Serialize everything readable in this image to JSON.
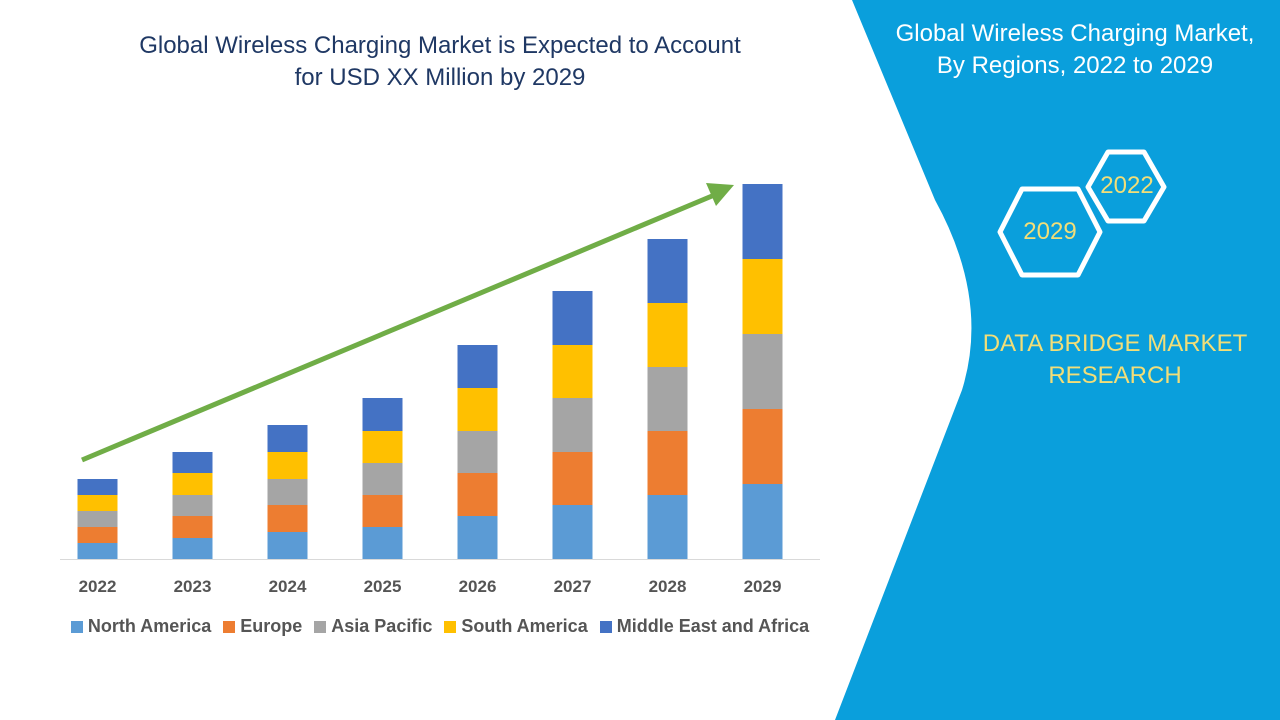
{
  "chart_data": {
    "type": "bar",
    "stacked": true,
    "title": "Global Wireless Charging Market is Expected to Account for USD XX Million by 2029",
    "title_lines": [
      "Global Wireless Charging Market is Expected to Account",
      "for USD XX Million by 2029"
    ],
    "categories": [
      "2022",
      "2023",
      "2024",
      "2025",
      "2026",
      "2027",
      "2028",
      "2029"
    ],
    "series": [
      {
        "name": "North America",
        "color": "#5b9bd5",
        "values": [
          16,
          21,
          27,
          32,
          43,
          54,
          64,
          75
        ]
      },
      {
        "name": "Europe",
        "color": "#ed7d31",
        "values": [
          16,
          22,
          27,
          32,
          43,
          53,
          64,
          75
        ]
      },
      {
        "name": "Asia Pacific",
        "color": "#a5a5a5",
        "values": [
          16,
          21,
          26,
          32,
          42,
          54,
          64,
          75
        ]
      },
      {
        "name": "South America",
        "color": "#ffc000",
        "values": [
          16,
          22,
          27,
          32,
          43,
          53,
          64,
          75
        ]
      },
      {
        "name": "Middle East and Africa",
        "color": "#4472c4",
        "values": [
          16,
          21,
          27,
          33,
          43,
          54,
          64,
          75
        ]
      }
    ],
    "ylim": [
      0,
      400
    ],
    "y_axis_visible": false,
    "grid": false,
    "legend_position": "bottom",
    "trend_arrow_color": "#70ad47"
  },
  "side_panel": {
    "title_lines": [
      "Global Wireless Charging Market,",
      "By Regions, 2022 to 2029"
    ],
    "hex_start": "2022",
    "hex_end": "2029",
    "brand_lines": [
      "DATA BRIDGE MARKET",
      "RESEARCH"
    ],
    "background_color": "#0a9fdc",
    "accent_color": "#f2de78"
  }
}
